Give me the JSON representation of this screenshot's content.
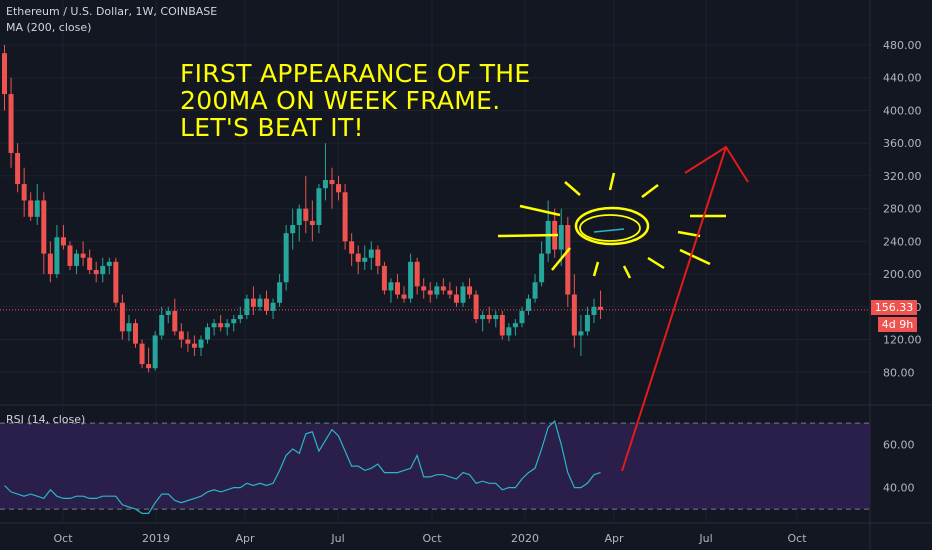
{
  "header": {
    "symbol_line": "Ethereum / U.S. Dollar, 1W, COINBASE",
    "ma_line": "MA (200, close)"
  },
  "annotation": {
    "text": "FIRST APPEARANCE OF THE 200MA ON WEEK FRAME. LET'S BEAT IT!"
  },
  "price_label": "156.33",
  "timer_label": "4d 9h",
  "rsi_label": "RSI (14, close)",
  "colors": {
    "background": "#131722",
    "up": "#26a69a",
    "down": "#ef5350",
    "rsi_line": "#2bb5c7",
    "rsi_band": "#2a1e4a",
    "annotation": "#ffff00",
    "arrow": "#e21b1b"
  },
  "chart_data": [
    {
      "type": "candlestick",
      "title": "Ethereum / U.S. Dollar, 1W, COINBASE",
      "y_ticks": [
        80,
        120,
        160,
        200,
        240,
        280,
        320,
        360,
        400,
        440,
        480
      ],
      "y_tick_labels": [
        "80.00",
        "120.00",
        "160.00",
        "200.00",
        "240.00",
        "280.00",
        "320.00",
        "360.00",
        "400.00",
        "440.00",
        "480.00"
      ],
      "ylim": [
        40,
        535
      ],
      "x_tick_labels": [
        "Oct",
        "2019",
        "Apr",
        "Jul",
        "Oct",
        "2020",
        "Apr",
        "Jul",
        "Oct"
      ],
      "last_price": 156.33,
      "candles": [
        [
          470,
          480,
          400,
          420
        ],
        [
          420,
          440,
          330,
          348
        ],
        [
          348,
          360,
          300,
          310
        ],
        [
          310,
          330,
          270,
          290
        ],
        [
          290,
          300,
          265,
          270
        ],
        [
          270,
          310,
          260,
          290
        ],
        [
          290,
          300,
          200,
          225
        ],
        [
          225,
          240,
          190,
          200
        ],
        [
          200,
          260,
          195,
          245
        ],
        [
          245,
          260,
          230,
          235
        ],
        [
          235,
          240,
          205,
          210
        ],
        [
          210,
          230,
          200,
          225
        ],
        [
          225,
          240,
          210,
          220
        ],
        [
          220,
          230,
          200,
          205
        ],
        [
          205,
          215,
          190,
          200
        ],
        [
          200,
          220,
          190,
          210
        ],
        [
          210,
          220,
          200,
          215
        ],
        [
          215,
          220,
          160,
          165
        ],
        [
          165,
          175,
          120,
          130
        ],
        [
          130,
          150,
          118,
          140
        ],
        [
          140,
          145,
          110,
          115
        ],
        [
          115,
          120,
          85,
          90
        ],
        [
          90,
          110,
          80,
          85
        ],
        [
          85,
          130,
          82,
          125
        ],
        [
          125,
          160,
          120,
          150
        ],
        [
          150,
          160,
          140,
          155
        ],
        [
          155,
          170,
          125,
          130
        ],
        [
          130,
          140,
          110,
          120
        ],
        [
          120,
          130,
          105,
          115
        ],
        [
          115,
          125,
          100,
          110
        ],
        [
          110,
          125,
          100,
          120
        ],
        [
          120,
          140,
          115,
          135
        ],
        [
          135,
          145,
          125,
          140
        ],
        [
          140,
          150,
          130,
          135
        ],
        [
          135,
          145,
          125,
          140
        ],
        [
          140,
          150,
          130,
          145
        ],
        [
          145,
          160,
          140,
          150
        ],
        [
          150,
          175,
          145,
          170
        ],
        [
          170,
          185,
          150,
          160
        ],
        [
          160,
          175,
          155,
          170
        ],
        [
          170,
          180,
          150,
          155
        ],
        [
          155,
          170,
          145,
          165
        ],
        [
          165,
          200,
          160,
          190
        ],
        [
          190,
          260,
          180,
          250
        ],
        [
          250,
          280,
          230,
          260
        ],
        [
          260,
          285,
          240,
          280
        ],
        [
          280,
          320,
          250,
          265
        ],
        [
          265,
          290,
          240,
          260
        ],
        [
          260,
          310,
          250,
          305
        ],
        [
          305,
          360,
          290,
          315
        ],
        [
          315,
          330,
          280,
          310
        ],
        [
          310,
          320,
          290,
          300
        ],
        [
          300,
          310,
          230,
          240
        ],
        [
          240,
          250,
          210,
          225
        ],
        [
          225,
          235,
          200,
          215
        ],
        [
          215,
          235,
          205,
          220
        ],
        [
          220,
          240,
          205,
          230
        ],
        [
          230,
          235,
          200,
          210
        ],
        [
          210,
          215,
          175,
          180
        ],
        [
          180,
          195,
          165,
          190
        ],
        [
          190,
          200,
          170,
          175
        ],
        [
          175,
          185,
          165,
          170
        ],
        [
          170,
          225,
          165,
          215
        ],
        [
          215,
          220,
          175,
          185
        ],
        [
          185,
          195,
          170,
          180
        ],
        [
          180,
          190,
          165,
          175
        ],
        [
          175,
          190,
          170,
          185
        ],
        [
          185,
          195,
          175,
          180
        ],
        [
          180,
          190,
          170,
          175
        ],
        [
          175,
          185,
          160,
          165
        ],
        [
          165,
          190,
          160,
          185
        ],
        [
          185,
          195,
          170,
          175
        ],
        [
          175,
          180,
          140,
          145
        ],
        [
          145,
          155,
          130,
          150
        ],
        [
          150,
          160,
          140,
          145
        ],
        [
          145,
          155,
          135,
          150
        ],
        [
          150,
          155,
          120,
          125
        ],
        [
          125,
          140,
          118,
          135
        ],
        [
          135,
          145,
          125,
          140
        ],
        [
          140,
          160,
          135,
          155
        ],
        [
          155,
          175,
          150,
          170
        ],
        [
          170,
          200,
          165,
          190
        ],
        [
          190,
          240,
          185,
          225
        ],
        [
          225,
          290,
          215,
          265
        ],
        [
          265,
          280,
          220,
          230
        ],
        [
          230,
          280,
          210,
          260
        ],
        [
          260,
          270,
          160,
          175
        ],
        [
          175,
          200,
          110,
          125
        ],
        [
          125,
          150,
          100,
          130
        ],
        [
          130,
          160,
          125,
          150
        ],
        [
          150,
          170,
          140,
          160
        ],
        [
          160,
          180,
          145,
          156.33
        ]
      ]
    },
    {
      "type": "line",
      "title": "RSI (14, close)",
      "y_ticks": [
        40,
        60
      ],
      "y_tick_labels": [
        "40.00",
        "60.00"
      ],
      "ylim": [
        24,
        78
      ],
      "bands": [
        30,
        70
      ],
      "values": [
        41,
        38,
        37,
        36,
        37,
        36,
        35,
        39,
        36,
        35,
        35,
        36,
        36,
        35,
        35,
        36,
        36,
        36,
        32,
        31,
        30,
        28,
        28,
        33,
        37,
        37,
        34,
        33,
        34,
        35,
        36,
        38,
        39,
        38,
        39,
        40,
        40,
        42,
        41,
        42,
        41,
        42,
        48,
        55,
        58,
        56,
        65,
        66,
        57,
        62,
        67,
        64,
        57,
        50,
        50,
        48,
        49,
        51,
        47,
        47,
        47,
        48,
        49,
        55,
        45,
        45,
        46,
        46,
        45,
        44,
        47,
        46,
        42,
        43,
        42,
        42,
        39,
        40,
        40,
        44,
        47,
        49,
        58,
        68,
        71,
        60,
        47,
        40,
        40,
        42,
        46,
        47
      ]
    }
  ]
}
